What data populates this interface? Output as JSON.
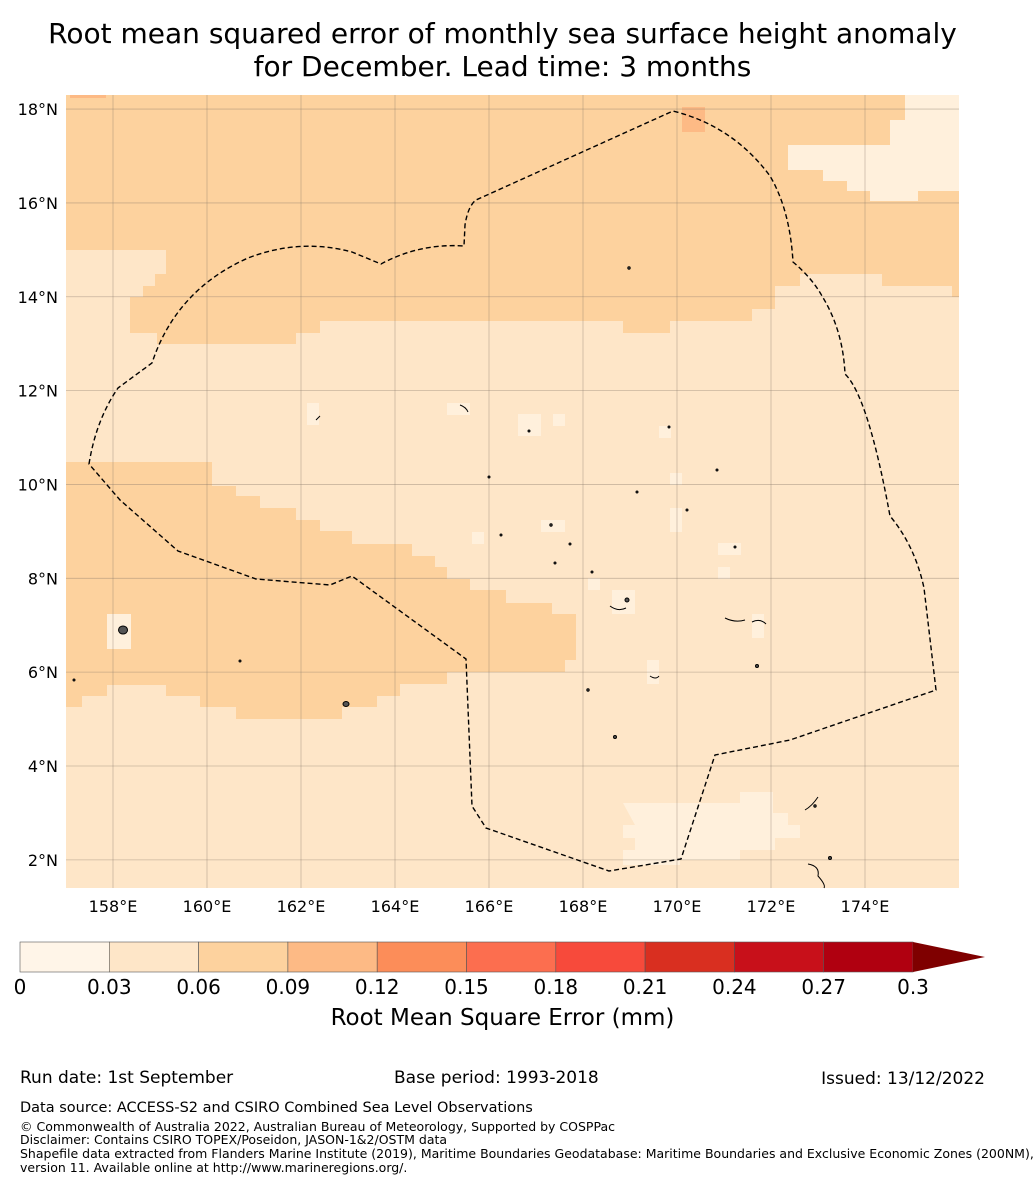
{
  "title_line1": "Root mean squared error of monthly sea surface height anomaly",
  "title_line2": "for December. Lead time: 3 months",
  "map": {
    "lat_ticks": [
      "18°N",
      "16°N",
      "14°N",
      "12°N",
      "10°N",
      "8°N",
      "6°N",
      "4°N",
      "2°N"
    ],
    "lon_ticks": [
      "158°E",
      "160°E",
      "162°E",
      "164°E",
      "166°E",
      "168°E",
      "170°E",
      "172°E",
      "174°E"
    ],
    "extent": {
      "lon_min": 157,
      "lon_max": 176,
      "lat_min": 1.4,
      "lat_max": 18.3
    },
    "legend_colors": {
      "low": "#fff0dc",
      "mid": "#fee6c8",
      "high": "#fdd29e"
    },
    "boundary": "dashed EEZ outline"
  },
  "colorbar": {
    "ticks": [
      "0",
      "0.03",
      "0.06",
      "0.09",
      "0.12",
      "0.15",
      "0.18",
      "0.21",
      "0.24",
      "0.27",
      "0.3"
    ],
    "colors": [
      "#fff5e8",
      "#fee6c8",
      "#fdd29e",
      "#fdba85",
      "#fc8d59",
      "#fc6e4f",
      "#f74a3b",
      "#d92f20",
      "#c8101a",
      "#b00010"
    ],
    "extend_color": "#7f0000",
    "label": "Root Mean Square Error (mm)"
  },
  "footer": {
    "run_date": "Run date: 1st September",
    "base_period": "Base period: 1993-2018",
    "issued": "Issued: 13/12/2022",
    "data_source": "Data source: ACCESS-S2 and CSIRO Combined Sea Level Observations",
    "copyright": "© Commonwealth of Australia 2022, Australian Bureau of Meteorology, Supported by COSPPac",
    "disclaimer": "Disclaimer: Contains CSIRO TOPEX/Poseidon, JASON-1&2/OSTM data",
    "shapefile1": "Shapefile data extracted from Flanders Marine Institute (2019), Maritime Boundaries Geodatabase: Maritime Boundaries and Exclusive Economic Zones (200NM),",
    "shapefile2": "version 11. Available online at http://www.marineregions.org/."
  }
}
